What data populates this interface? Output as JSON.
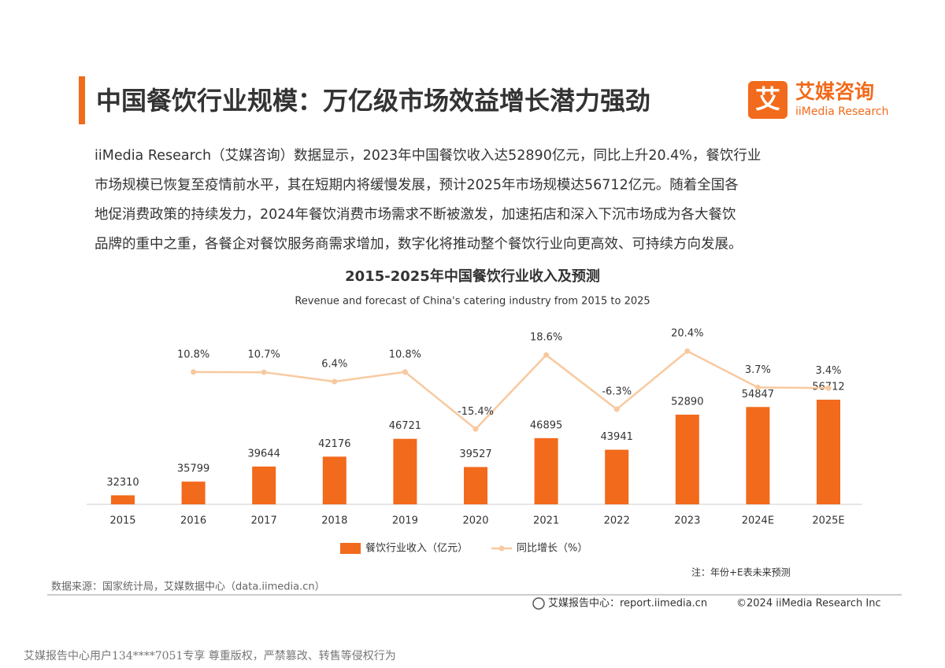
{
  "header": {
    "title": "中国餐饮行业规模：万亿级市场效益增长潜力强劲",
    "logo_mark": "艾",
    "logo_cn": "艾媒咨询",
    "logo_en": "iiMedia Research"
  },
  "body_lines": [
    "iiMedia Research（艾媒咨询）数据显示，2023年中国餐饮收入达52890亿元，同比上升20.4%，餐饮行业",
    "市场规模已恢复至疫情前水平，其在短期内将缓慢发展，预计2025年市场规模达56712亿元。随着全国各",
    "地促消费政策的持续发力，2024年餐饮消费市场需求不断被激发，加速拓店和深入下沉市场成为各大餐饮",
    "品牌的重中之重，各餐企对餐饮服务商需求增加，数字化将推动整个餐饮行业向更高效、可持续方向发展。"
  ],
  "chart_data": {
    "type": "bar",
    "title": "2015-2025年中国餐饮行业收入及预测",
    "subtitle": "Revenue and forecast of China's catering industry from 2015 to 2025",
    "categories": [
      "2015",
      "2016",
      "2017",
      "2018",
      "2019",
      "2020",
      "2021",
      "2022",
      "2023",
      "2024E",
      "2025E"
    ],
    "series": [
      {
        "name": "餐饮行业收入（亿元）",
        "color": "#f26a1b",
        "values": [
          32310,
          35799,
          39644,
          42176,
          46721,
          39527,
          46895,
          43941,
          52890,
          54847,
          56712
        ]
      },
      {
        "name": "同比增长（%）",
        "color": "#f8c9a0",
        "axis": "y2",
        "values": [
          null,
          10.8,
          10.7,
          6.4,
          10.8,
          -15.4,
          18.6,
          -6.3,
          20.4,
          3.7,
          3.4
        ],
        "value_labels": [
          null,
          "10.8%",
          "10.7%",
          "6.4%",
          "10.8%",
          "-15.4%",
          "18.6%",
          "-6.3%",
          "20.4%",
          "3.7%",
          "3.4%"
        ]
      }
    ],
    "ylim": [
      30000,
      80000
    ],
    "y2lim": [
      -50,
      40
    ],
    "note": "注：年份+E表未来预测"
  },
  "source": "数据来源：国家统计局，艾媒数据中心（data.iimedia.cn）",
  "footer": {
    "center": "艾媒报告中心：report.iimedia.cn",
    "copyright": "©2024  iiMedia Research  Inc"
  },
  "watermark": "艾媒报告中心用户134****7051专享 尊重版权，严禁篡改、转售等侵权行为"
}
